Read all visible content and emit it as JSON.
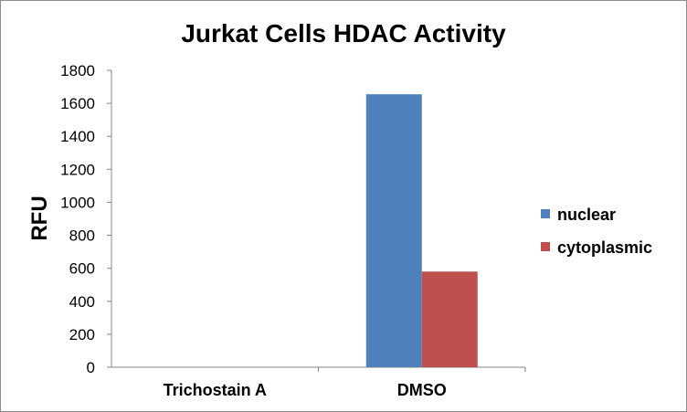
{
  "chart_data": {
    "type": "bar",
    "title": "Jurkat Cells HDAC Activity",
    "xlabel": "",
    "ylabel": "RFU",
    "ylim": [
      0,
      1800
    ],
    "yticks": [
      0,
      200,
      400,
      600,
      800,
      1000,
      1200,
      1400,
      1600,
      1800
    ],
    "categories": [
      "Trichostain A",
      "DMSO"
    ],
    "series": [
      {
        "name": "nuclear",
        "color": "#4F81BD",
        "values": [
          0,
          1655
        ]
      },
      {
        "name": "cytoplasmic",
        "color": "#C0504D",
        "values": [
          0,
          580
        ]
      }
    ],
    "grid": false,
    "legend_position": "right"
  }
}
